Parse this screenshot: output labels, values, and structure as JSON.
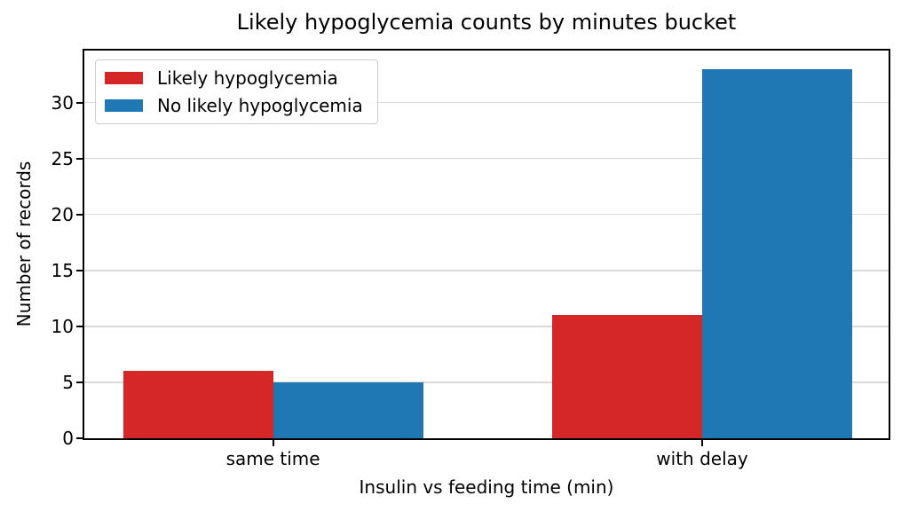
{
  "chart_data": {
    "type": "bar",
    "title": "Likely hypoglycemia counts by minutes bucket",
    "xlabel": "Insulin vs feeding time (min)",
    "ylabel": "Number of records",
    "categories": [
      "same time",
      "with delay"
    ],
    "series": [
      {
        "name": "Likely hypoglycemia",
        "color": "#d62728",
        "values": [
          6,
          11
        ]
      },
      {
        "name": "No likely hypoglycemia",
        "color": "#1f77b4",
        "values": [
          5,
          33
        ]
      }
    ],
    "yticks": [
      0,
      5,
      10,
      15,
      20,
      25,
      30
    ],
    "ylim": [
      0,
      34.65
    ],
    "grid": true,
    "grid_color": "#d9d9d9",
    "legend_position": "upper left",
    "bar_width_ratio": 0.35,
    "axis_color": "#000000",
    "background_color": "#ffffff"
  }
}
